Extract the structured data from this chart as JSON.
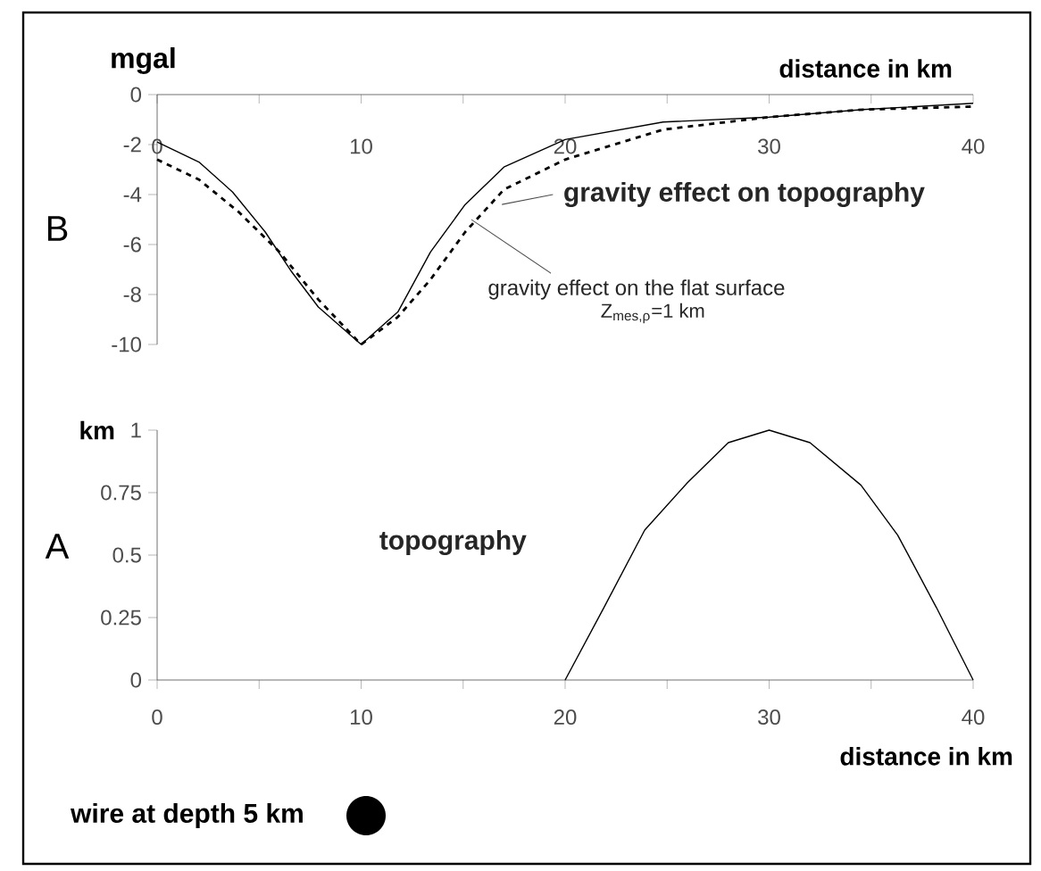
{
  "chart_data": [
    {
      "type": "line",
      "xlabel": "distance in km",
      "ylabel": "mgal",
      "xlim": [
        0,
        40
      ],
      "ylim": [
        -10,
        0
      ],
      "xticks": [
        0,
        {
          "value": 5,
          "label": null
        },
        10,
        {
          "value": 15,
          "label": null
        },
        20,
        {
          "value": 25,
          "label": null
        },
        30,
        {
          "value": 35,
          "label": null
        },
        40
      ],
      "yticks": [
        -10,
        -8,
        -6,
        -4,
        -2,
        0
      ],
      "annotations": [
        "B",
        "Z$_{mes,ρ}$=1 km"
      ],
      "series": [
        {
          "name": "gravity effect on topography",
          "color": "#000000",
          "line_style": "solid",
          "x": [
            0,
            2.05,
            3.7,
            5.3,
            6.6,
            7.9,
            10,
            11.8,
            13.4,
            15.1,
            17,
            20,
            24.8,
            30,
            34.6,
            40
          ],
          "values": [
            -1.9,
            -2.7,
            -3.9,
            -5.5,
            -7.1,
            -8.5,
            -10,
            -8.7,
            -6.3,
            -4.4,
            -2.9,
            -1.8,
            -1.1,
            -0.9,
            -0.6,
            -0.35
          ]
        },
        {
          "name": "gravity effect on the flat surface",
          "color": "#000000",
          "line_style": "dashed",
          "x": [
            0,
            2.05,
            4,
            6,
            7.9,
            10,
            11.8,
            13.4,
            15.1,
            17,
            20,
            24.8,
            30,
            34.6,
            40
          ],
          "values": [
            -2.6,
            -3.4,
            -4.7,
            -6.3,
            -8.2,
            -10,
            -8.9,
            -7.4,
            -5.5,
            -3.8,
            -2.6,
            -1.4,
            -0.9,
            -0.6,
            -0.48
          ]
        }
      ]
    },
    {
      "type": "line",
      "xlabel": "distance in km",
      "ylabel": "km",
      "xlim": [
        0,
        40
      ],
      "ylim": [
        0,
        1
      ],
      "xticks": [
        0,
        {
          "value": 5,
          "label": null
        },
        10,
        {
          "value": 15,
          "label": null
        },
        20,
        {
          "value": 25,
          "label": null
        },
        30,
        {
          "value": 35,
          "label": null
        },
        40
      ],
      "yticks": [
        0,
        0.25,
        0.5,
        0.75,
        1
      ],
      "annotations": [
        "A",
        "wire at depth 5 km"
      ],
      "series": [
        {
          "name": "topography",
          "color": "#000000",
          "line_style": "solid",
          "x": [
            20,
            21.9,
            23.9,
            26,
            28,
            30,
            32,
            34.5,
            36.3,
            38.2,
            40
          ],
          "values": [
            0,
            0.29,
            0.6,
            0.79,
            0.95,
            1,
            0.95,
            0.78,
            0.58,
            0.29,
            0
          ]
        }
      ]
    }
  ]
}
